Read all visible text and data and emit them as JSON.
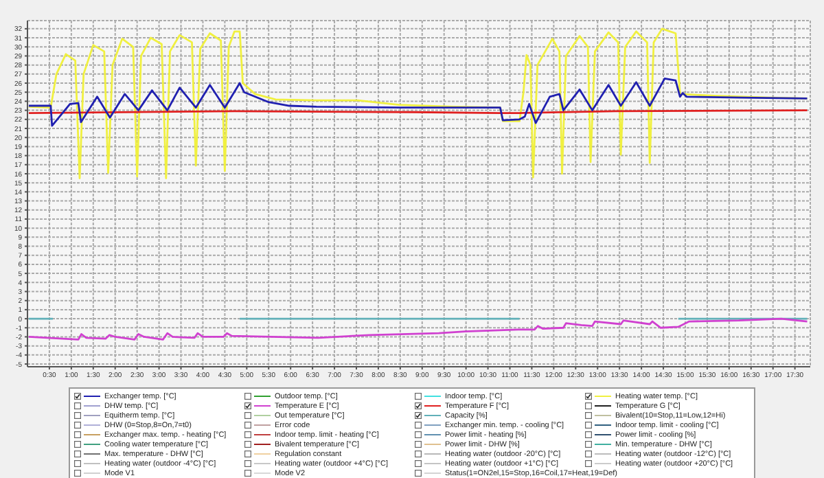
{
  "chart_data": {
    "type": "line",
    "ylim": [
      -5.3,
      32.9
    ],
    "yticks": [
      -5,
      -4,
      -3,
      -2,
      -1,
      0,
      1,
      2,
      3,
      4,
      5,
      6,
      7,
      8,
      9,
      10,
      11,
      12,
      13,
      14,
      15,
      16,
      17,
      18,
      19,
      20,
      21,
      22,
      23,
      24,
      25,
      26,
      27,
      28,
      29,
      30,
      31,
      32
    ],
    "xlim": [
      0,
      17.85
    ],
    "xticks": [
      {
        "value": 0.5,
        "label": "0:30"
      },
      {
        "value": 1,
        "label": "1:00"
      },
      {
        "value": 1.5,
        "label": "1:30"
      },
      {
        "value": 2,
        "label": "2:00"
      },
      {
        "value": 2.5,
        "label": "2:30"
      },
      {
        "value": 3,
        "label": "3:00"
      },
      {
        "value": 3.5,
        "label": "3:30"
      },
      {
        "value": 4,
        "label": "4:00"
      },
      {
        "value": 4.5,
        "label": "4:30"
      },
      {
        "value": 5,
        "label": "5:00"
      },
      {
        "value": 5.5,
        "label": "5:30"
      },
      {
        "value": 6,
        "label": "6:00"
      },
      {
        "value": 6.5,
        "label": "6:30"
      },
      {
        "value": 7,
        "label": "7:00"
      },
      {
        "value": 7.5,
        "label": "7:30"
      },
      {
        "value": 8,
        "label": "8:00"
      },
      {
        "value": 8.5,
        "label": "8:30"
      },
      {
        "value": 9,
        "label": "9:00"
      },
      {
        "value": 9.5,
        "label": "9:30"
      },
      {
        "value": 10,
        "label": "10:00"
      },
      {
        "value": 10.5,
        "label": "10:30"
      },
      {
        "value": 11,
        "label": "11:00"
      },
      {
        "value": 11.5,
        "label": "11:30"
      },
      {
        "value": 12,
        "label": "12:00"
      },
      {
        "value": 12.5,
        "label": "12:30"
      },
      {
        "value": 13,
        "label": "13:00"
      },
      {
        "value": 13.5,
        "label": "13:30"
      },
      {
        "value": 14,
        "label": "14:00"
      },
      {
        "value": 14.5,
        "label": "14:30"
      },
      {
        "value": 15,
        "label": "15:00"
      },
      {
        "value": 15.5,
        "label": "15:30"
      },
      {
        "value": 16,
        "label": "16:00"
      },
      {
        "value": 16.5,
        "label": "16:30"
      },
      {
        "value": 17,
        "label": "17:00"
      },
      {
        "value": 17.5,
        "label": "17:30"
      }
    ],
    "grid": true,
    "legend": "bottom",
    "series": [
      {
        "name": "Exchanger temp. [°C]",
        "color": "#2020b0",
        "x": [
          0.03,
          0.53,
          0.56,
          0.97,
          1.16,
          1.22,
          1.59,
          1.88,
          2.22,
          2.53,
          2.84,
          3.19,
          3.47,
          3.84,
          4.16,
          4.5,
          4.84,
          4.94,
          5.5,
          5.97,
          6.59,
          8.5,
          10.78,
          10.84,
          11.22,
          11.34,
          11.44,
          11.59,
          11.91,
          12.13,
          12.22,
          12.59,
          12.88,
          13.25,
          13.53,
          13.88,
          14.19,
          14.53,
          14.78,
          14.88,
          14.94,
          15.03,
          16.28,
          17.78
        ],
        "values": [
          23.5,
          23.5,
          21.3,
          23.7,
          23.8,
          21.7,
          24.5,
          22.2,
          24.8,
          23,
          25.2,
          23,
          25.5,
          23.3,
          25.8,
          23.3,
          26,
          25,
          23.9,
          23.5,
          23.4,
          23.3,
          23.3,
          21.9,
          22,
          22.3,
          23.7,
          21.6,
          24.5,
          24.8,
          23,
          25.3,
          23,
          25.8,
          23.5,
          26.1,
          23.5,
          26.5,
          26.3,
          24.5,
          24.9,
          24.5,
          24.4,
          24.3
        ]
      },
      {
        "name": "DHW temp. [°C]",
        "color": "#a0a0d0"
      },
      {
        "name": "Equitherm temp. [°C]",
        "color": "#a0a0c0"
      },
      {
        "name": "DHW (0=Stop,8=On,7=t0)",
        "color": "#b0b0d8"
      },
      {
        "name": "Exchanger max. temp. - heating [°C]",
        "color": "#c8a060"
      },
      {
        "name": "Cooling water temperature [°C]",
        "color": "#40a080"
      },
      {
        "name": "Max. temperature - DHW [°C]",
        "color": "#707070"
      },
      {
        "name": "Heating water (outdoor -4°C) [°C]",
        "color": "#c0c0c0"
      },
      {
        "name": "Mode V1",
        "color": "#d0d0d0"
      },
      {
        "name": "Outdoor temp. [°C]",
        "color": "#30a030"
      },
      {
        "name": "Temperature E [°C]",
        "color": "#d040d0",
        "x": [
          0.03,
          1.16,
          1.23,
          1.34,
          1.78,
          1.87,
          2.0,
          2.44,
          2.53,
          2.66,
          3.09,
          3.19,
          3.31,
          3.81,
          3.88,
          4.0,
          4.47,
          4.55,
          4.66,
          6.63,
          7.81,
          9.38,
          9.98,
          11.19,
          11.56,
          11.64,
          11.75,
          12.22,
          12.28,
          12.63,
          12.88,
          12.94,
          13.53,
          13.59,
          14.19,
          14.25,
          14.44,
          14.84,
          15.09,
          16.22,
          17.19,
          17.78
        ],
        "values": [
          -2.0,
          -2.3,
          -1.7,
          -2.1,
          -2.2,
          -1.8,
          -2.0,
          -2.3,
          -1.7,
          -2.0,
          -2.3,
          -1.6,
          -2.0,
          -2.1,
          -1.6,
          -2.0,
          -2.0,
          -1.6,
          -1.9,
          -2.1,
          -1.8,
          -1.6,
          -1.4,
          -1.2,
          -1.2,
          -0.8,
          -1.1,
          -1.0,
          -0.5,
          -0.7,
          -0.8,
          -0.3,
          -0.6,
          -0.2,
          -0.6,
          -0.3,
          -1.0,
          -0.9,
          -0.3,
          -0.2,
          0.0,
          -0.3
        ]
      },
      {
        "name": "Out temperature [°C]",
        "color": "#b0d0a0"
      },
      {
        "name": "Error code",
        "color": "#c0a0a0"
      },
      {
        "name": "Indoor temp. limit - heating [°C]",
        "color": "#c04040"
      },
      {
        "name": "Bivalent temperature [°C]",
        "color": "#a02020"
      },
      {
        "name": "Regulation constant",
        "color": "#f0d0a0"
      },
      {
        "name": "Heating water (outdoor +4°C) [°C]",
        "color": "#c8c8c8"
      },
      {
        "name": "Mode V2",
        "color": "#d8d8d8"
      },
      {
        "name": "Indoor temp. [°C]",
        "color": "#40e0e0"
      },
      {
        "name": "Temperature F [°C]",
        "color": "#e02020",
        "x": [
          0.03,
          4.72,
          8.78,
          10.78,
          11.22,
          13.41,
          17.78
        ],
        "values": [
          22.7,
          22.9,
          22.8,
          22.7,
          22.7,
          22.9,
          23.0
        ]
      },
      {
        "name": "Capacity [%]",
        "color": "#60b0b8",
        "x": [
          0.03,
          0.58,
          0.6,
          4.84,
          11.22,
          11.25,
          14.84,
          17.78
        ],
        "values": [
          0,
          0,
          null,
          0,
          0,
          null,
          0,
          0
        ]
      },
      {
        "name": "Exchanger min. temp. - cooling [°C]",
        "color": "#80a0c0"
      },
      {
        "name": "Power limit - heating [%]",
        "color": "#6090b0"
      },
      {
        "name": "Power limit - DHW [%]",
        "color": "#e0c090"
      },
      {
        "name": "Heating water (outdoor -20°C) [°C]",
        "color": "#b8b8b8"
      },
      {
        "name": "Heating water (outdoor +1°C) [°C]",
        "color": "#c4c4c4"
      },
      {
        "name": "Status(1=ON2el,15=Stop,16=Coil,17=Heat,19=Def)",
        "color": "#d4d4d4"
      },
      {
        "name": "Heating water temp. [°C]",
        "color": "#f0f040",
        "x": [
          0.03,
          0.53,
          0.66,
          0.875,
          1.09,
          1.19,
          1.28,
          1.5,
          1.75,
          1.84,
          1.94,
          2.16,
          2.41,
          2.5,
          2.59,
          2.81,
          3.06,
          3.16,
          3.25,
          3.47,
          3.75,
          3.84,
          3.94,
          4.16,
          4.41,
          4.5,
          4.59,
          4.72,
          4.84,
          4.91,
          5.19,
          5.66,
          6.59,
          7.53,
          8.47,
          9.72,
          10.78,
          10.84,
          11.22,
          11.31,
          11.38,
          11.47,
          11.53,
          11.63,
          11.97,
          12.13,
          12.19,
          12.28,
          12.59,
          12.78,
          12.84,
          12.94,
          13.25,
          13.47,
          13.53,
          13.63,
          13.88,
          14.13,
          14.19,
          14.28,
          14.47,
          14.78,
          14.88,
          15.66,
          16.91,
          17.78
        ],
        "values": [
          23.4,
          23.3,
          27,
          29.2,
          28.5,
          15.5,
          27,
          30.2,
          29.5,
          16.1,
          28,
          30.9,
          30,
          15.7,
          29,
          31,
          30.3,
          15.5,
          29.5,
          31.3,
          30.5,
          16.9,
          29.8,
          31.5,
          30.7,
          16.3,
          30,
          31.7,
          31.7,
          26,
          24.8,
          24.2,
          24.1,
          24.1,
          23.6,
          23.4,
          23.3,
          21.8,
          21.8,
          25,
          29.1,
          28,
          15.6,
          28,
          30.9,
          29.5,
          16,
          29,
          31.2,
          30,
          17.3,
          29.5,
          31.6,
          30.5,
          18.1,
          30,
          31.7,
          30.5,
          17.2,
          30.5,
          32,
          31.5,
          24.8,
          24.6,
          24.4,
          24.3
        ]
      },
      {
        "name": "Temperature G [°C]",
        "color": "#202020"
      },
      {
        "name": "Bivalent(10=Stop,11=Low,12=Hi)",
        "color": "#c0c0a0"
      },
      {
        "name": "Indoor temp. limit - cooling [°C]",
        "color": "#306080"
      },
      {
        "name": "Power limit - cooling [%]",
        "color": "#305070"
      },
      {
        "name": "Min. temperature - DHW [°C]",
        "color": "#40b0a0"
      },
      {
        "name": "Heating water (outdoor -12°C) [°C]",
        "color": "#bcbcbc"
      },
      {
        "name": "Heating water (outdoor +20°C) [°C]",
        "color": "#cccccc"
      }
    ]
  }
}
